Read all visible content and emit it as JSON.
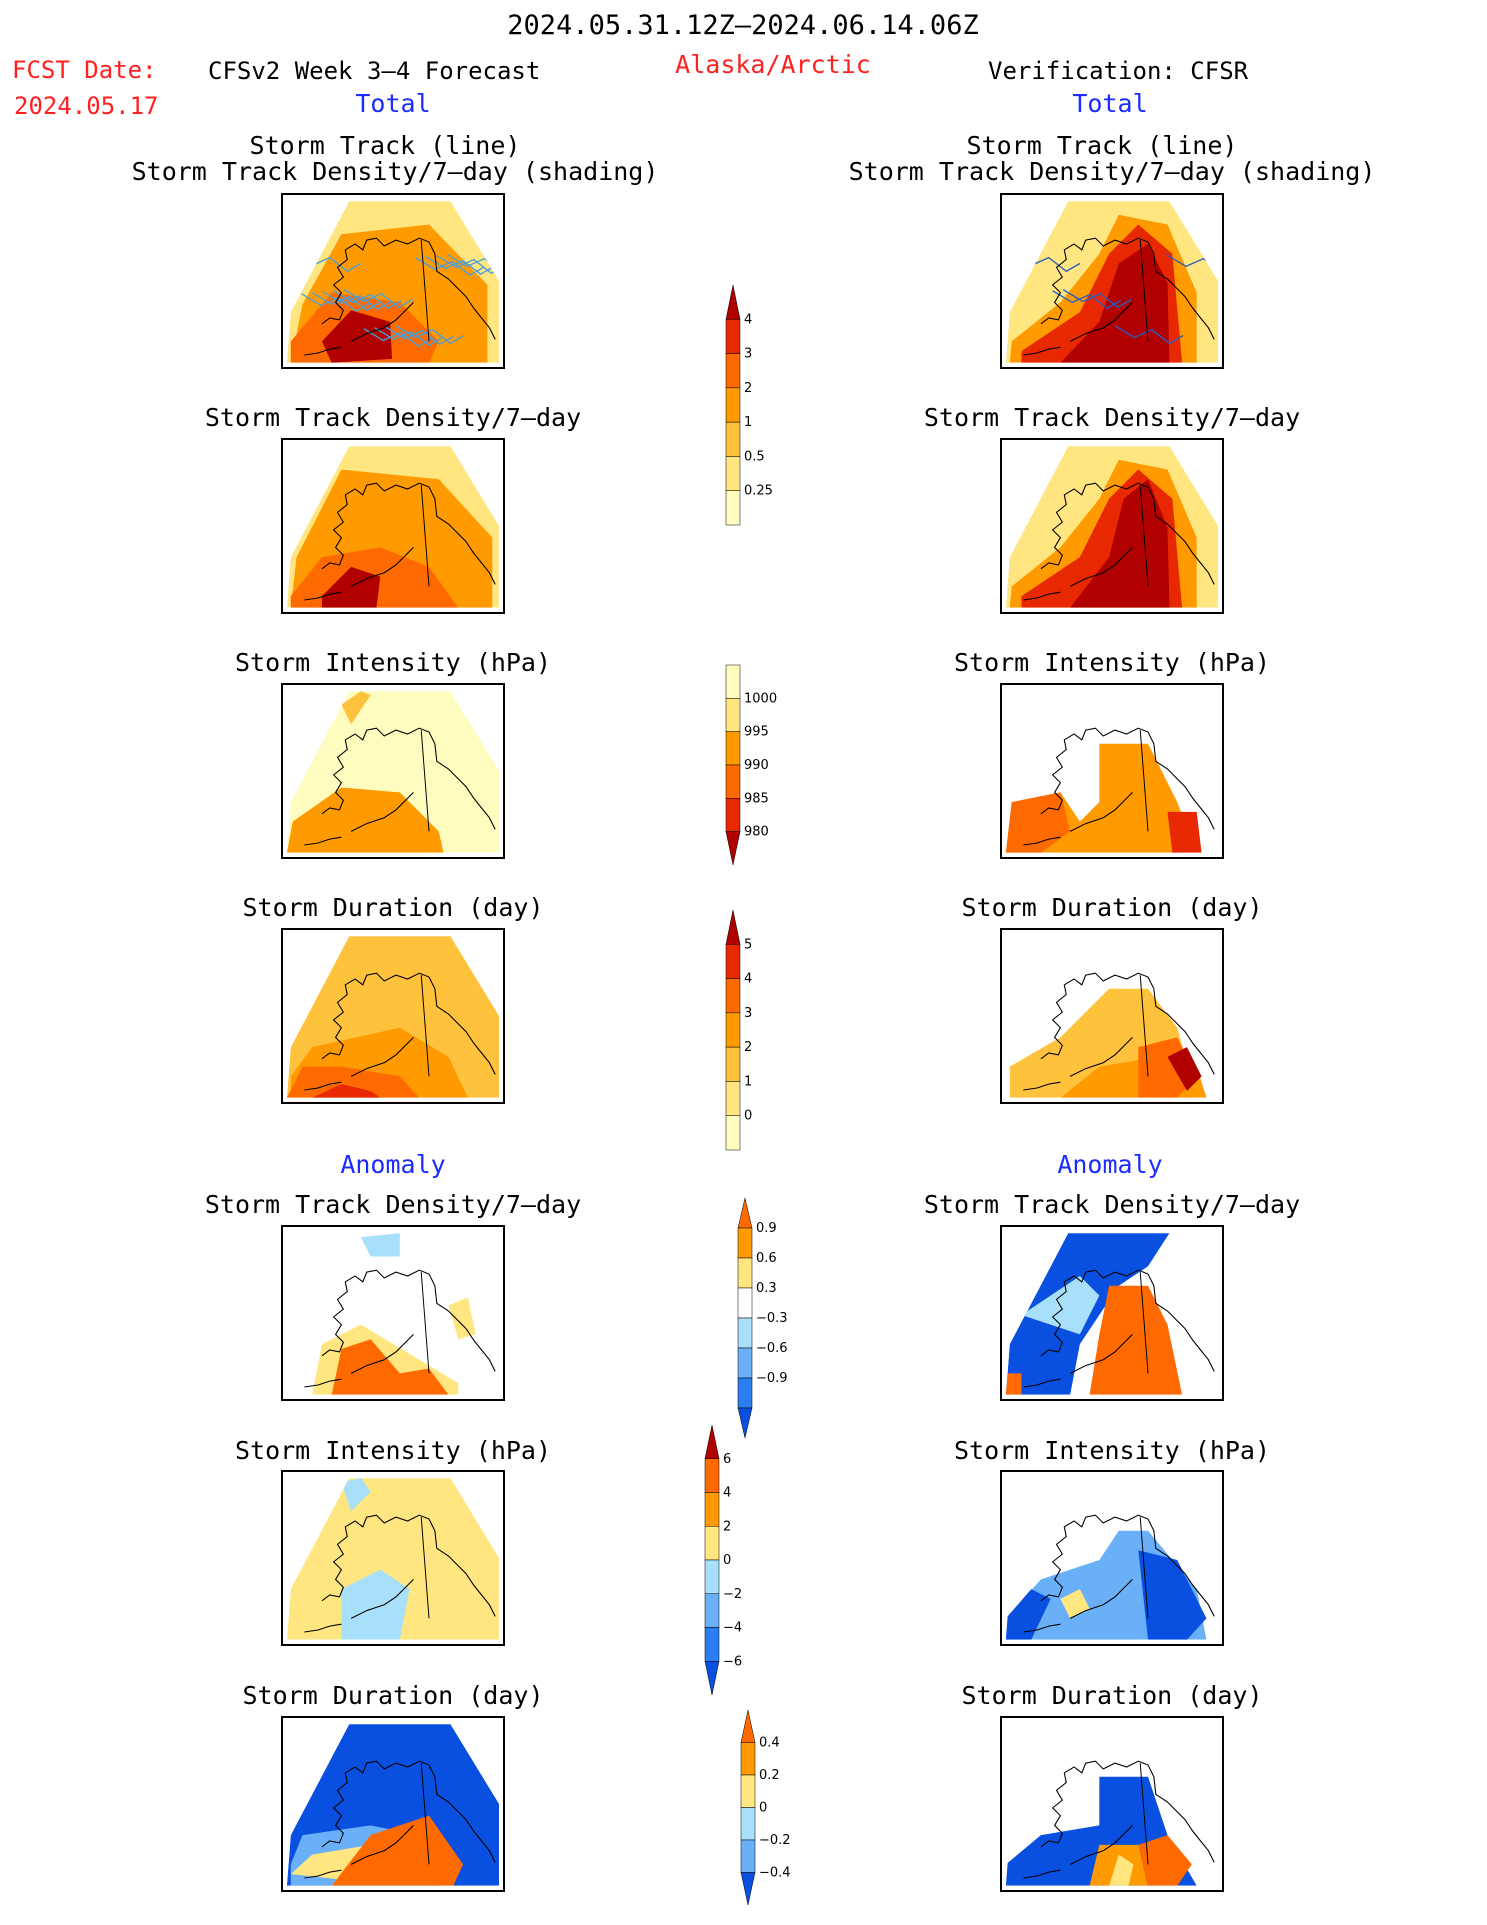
{
  "header": {
    "period": "2024.05.31.12Z–2024.06.14.06Z",
    "fcst_label": "FCST Date:",
    "fcst_date": "2024.05.17",
    "model": "CFSv2 Week 3–4 Forecast",
    "region": "Alaska/Arctic",
    "verification": "Verification: CFSR",
    "left_section": "Total",
    "right_section": "Total"
  },
  "anomaly": {
    "left": "Anomaly",
    "right": "Anomaly"
  },
  "titles": {
    "track_line": "Storm Track (line)",
    "track_shading": "Storm Track Density/7–day (shading)",
    "density": "Storm Track Density/7–day",
    "intensity": "Storm Intensity (hPa)",
    "duration": "Storm Duration (day)"
  },
  "colorbars": {
    "density": [
      "0.25",
      "0.5",
      "1",
      "2",
      "3",
      "4"
    ],
    "intensity": [
      "980",
      "985",
      "990",
      "995",
      "1000"
    ],
    "duration": [
      "0",
      "1",
      "2",
      "3",
      "4",
      "5"
    ],
    "density_anom": [
      "−0.9",
      "−0.6",
      "−0.3",
      "0.3",
      "0.6",
      "0.9"
    ],
    "intensity_anom": [
      "−6",
      "−4",
      "−2",
      "0",
      "2",
      "4",
      "6"
    ],
    "duration_anom": [
      "−0.4",
      "−0.2",
      "0",
      "0.2",
      "0.4"
    ]
  },
  "colors": {
    "warm": [
      "#fffcc0",
      "#ffe680",
      "#ffc23c",
      "#ff9a00",
      "#ff6a00",
      "#e82800",
      "#b00000"
    ],
    "cool": [
      "#0a50e0",
      "#2a7ef0",
      "#6ab0f8",
      "#a8e0fb",
      "#d8f5ff"
    ],
    "track_line": "#4aa0d8"
  }
}
